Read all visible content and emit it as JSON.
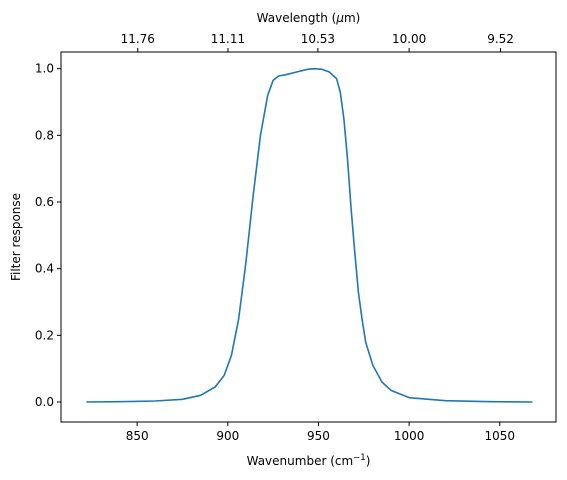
{
  "chart_data": {
    "type": "line",
    "xlabel": "Wavenumber (cm",
    "xlabel_sup": "−1",
    "xlabel_suffix": ")",
    "ylabel": "Filter response",
    "top_axis_label": "Wavelength (",
    "top_axis_label_italic": "μ",
    "top_axis_label_suffix": "m)",
    "xlim": [
      808,
      1081
    ],
    "ylim": [
      -0.06,
      1.05
    ],
    "x_ticks": [
      850,
      900,
      950,
      1000,
      1050
    ],
    "x_tick_labels": [
      "850",
      "900",
      "950",
      "1000",
      "1050"
    ],
    "y_ticks": [
      0.0,
      0.2,
      0.4,
      0.6,
      0.8,
      1.0
    ],
    "y_tick_labels": [
      "0.0",
      "0.2",
      "0.4",
      "0.6",
      "0.8",
      "1.0"
    ],
    "top_ticks_wavenumber": [
      850.34,
      900.09,
      949.67,
      1000,
      1050.42
    ],
    "top_tick_labels": [
      "11.76",
      "11.11",
      "10.53",
      "10.00",
      "9.52"
    ],
    "grid": false,
    "series": [
      {
        "color": "#1f77b4",
        "x": [
          822,
          840,
          860,
          875,
          885,
          893,
          898,
          902,
          906,
          910,
          914,
          918,
          922,
          925,
          928,
          932,
          938,
          944,
          948,
          952,
          956,
          960,
          962,
          964,
          966,
          968,
          970,
          972,
          974,
          976,
          980,
          985,
          990,
          1000,
          1020,
          1045,
          1068
        ],
        "y": [
          0.0,
          0.001,
          0.003,
          0.008,
          0.02,
          0.045,
          0.08,
          0.14,
          0.25,
          0.42,
          0.62,
          0.8,
          0.92,
          0.965,
          0.978,
          0.982,
          0.99,
          0.998,
          1.0,
          0.998,
          0.99,
          0.97,
          0.93,
          0.85,
          0.73,
          0.58,
          0.45,
          0.33,
          0.25,
          0.18,
          0.11,
          0.06,
          0.035,
          0.013,
          0.004,
          0.001,
          0.0
        ]
      }
    ]
  }
}
